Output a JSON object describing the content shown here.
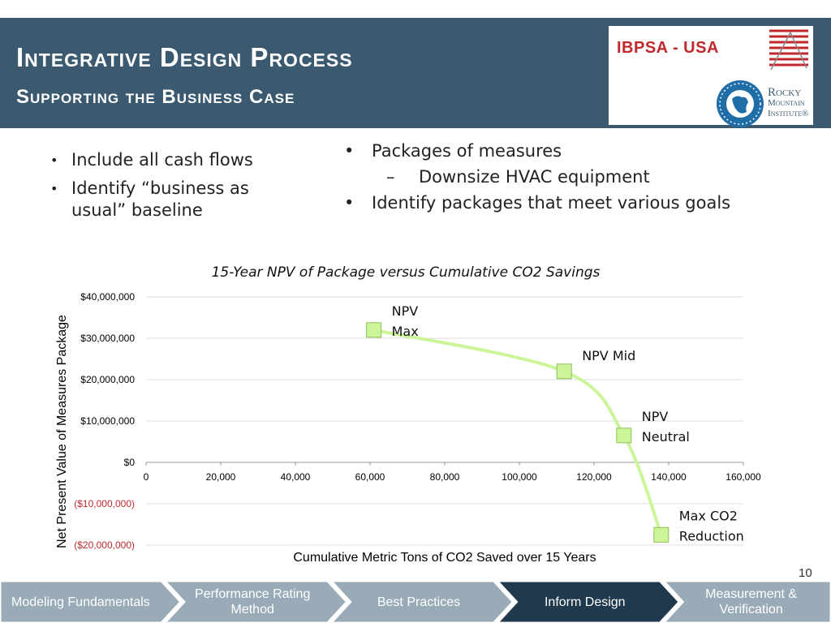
{
  "header": {
    "title": "Integrative Design Process",
    "subtitle": "Supporting the Business Case",
    "ibpsa_logo_text": "IBPSA - USA",
    "rmi_logo_lines": [
      "Rocky",
      "Mountain",
      "Institute®"
    ]
  },
  "bullets_left": [
    "Include all cash flows",
    "Identify “business as usual” baseline"
  ],
  "bullets_right": {
    "item1": "Packages of measures",
    "sub1": "Downsize HVAC equipment",
    "item2": "Identify packages that meet various goals"
  },
  "chart_data": {
    "type": "scatter",
    "title": "15-Year NPV of Package versus Cumulative CO2 Savings",
    "xlabel": "Cumulative Metric Tons of CO2 Saved over 15 Years",
    "ylabel": "Net Present Value of Measures Package",
    "xlim": [
      0,
      160000
    ],
    "ylim": [
      -20000000,
      40000000
    ],
    "x_ticks": [
      "0",
      "20,000",
      "40,000",
      "60,000",
      "80,000",
      "100,000",
      "120,000",
      "140,000",
      "160,000"
    ],
    "y_ticks": [
      "$40,000,000",
      "$30,000,000",
      "$20,000,000",
      "$10,000,000",
      "$0",
      "($10,000,000)",
      "($20,000,000)"
    ],
    "grid": true,
    "series_color": "#ccf59a",
    "points": [
      {
        "x": 61000,
        "y": 32000000,
        "label": "NPV Max"
      },
      {
        "x": 112000,
        "y": 22000000,
        "label": "NPV Mid"
      },
      {
        "x": 128000,
        "y": 6500000,
        "label": "NPV Neutral"
      },
      {
        "x": 138000,
        "y": -17500000,
        "label": "Max CO2 Reduction"
      }
    ]
  },
  "page_number": "10",
  "nav": {
    "items": [
      {
        "label": "Modeling Fundamentals"
      },
      {
        "label": "Performance Rating Method"
      },
      {
        "label": "Best Practices"
      },
      {
        "label": "Inform Design",
        "active": true
      },
      {
        "label": "Measurement & Verification"
      }
    ],
    "active_color": "#1f3a4f",
    "inactive_color": "#9aabb8"
  }
}
